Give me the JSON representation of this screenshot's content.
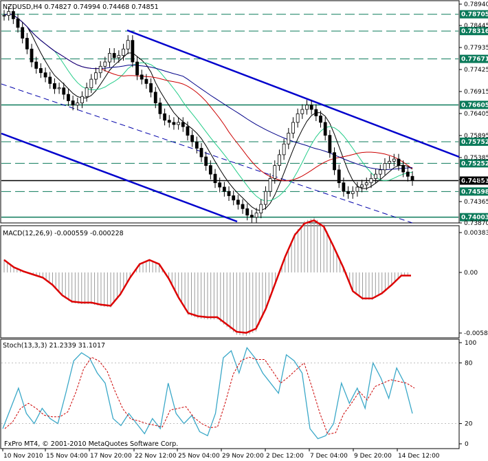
{
  "main_panel": {
    "header": "NZDUSD,H4  0.74827 0.74994 0.74468 0.74851",
    "y_labels": [
      "0.78940",
      "0.78445",
      "0.77935",
      "0.77425",
      "0.76915",
      "0.76405",
      "0.75895",
      "0.75385",
      "0.74875",
      "0.74365",
      "0.73870"
    ],
    "level_tags": [
      {
        "text": "0.78705",
        "value": 0.78705,
        "style": "green",
        "dashed": true
      },
      {
        "text": "0.78316",
        "value": 0.78316,
        "style": "green",
        "dashed": true
      },
      {
        "text": "0.77671",
        "value": 0.77671,
        "style": "green",
        "dashed": true
      },
      {
        "text": "0.76605",
        "value": 0.76605,
        "style": "green",
        "dashed": false
      },
      {
        "text": "0.75752",
        "value": 0.75752,
        "style": "green",
        "dashed": true
      },
      {
        "text": "0.75252",
        "value": 0.75252,
        "style": "green",
        "dashed": true
      },
      {
        "text": "0.74851",
        "value": 0.74851,
        "style": "black",
        "dashed": false
      },
      {
        "text": "0.74598",
        "value": 0.74598,
        "style": "green",
        "dashed": true
      },
      {
        "text": "0.74003",
        "value": 0.74003,
        "style": "green",
        "dashed": false
      }
    ]
  },
  "macd_panel": {
    "header": "MACD(12,26,9) -0.000559 -0.000228",
    "y_labels": [
      "0.00383",
      "0.00",
      "-0.00582"
    ]
  },
  "stoch_panel": {
    "header": "Stoch(13,3,3) 21.2339 31.1017",
    "y_labels": [
      "100",
      "80",
      "20",
      "0"
    ],
    "copyright": "FxPro MT4, © 2001-2010 MetaQuotes Software Corp."
  },
  "x_axis": {
    "labels": [
      "10 Nov 2010",
      "15 Nov 04:00",
      "17 Nov 20:00",
      "22 Nov 12:00",
      "25 Nov 04:00",
      "29 Nov 20:00",
      "2 Dec 12:00",
      "7 Dec 04:00",
      "9 Dec 20:00",
      "14 Dec 12:00"
    ]
  },
  "chart_data": {
    "type": "line",
    "series": [
      {
        "name": "NZDUSD,H4",
        "values": [
          0.7868,
          0.7877,
          0.786,
          0.784,
          0.7815,
          0.779,
          0.776,
          0.7745,
          0.7735,
          0.7725,
          0.771,
          0.7698,
          0.77,
          0.7685,
          0.767,
          0.766,
          0.7665,
          0.768,
          0.77,
          0.772,
          0.7735,
          0.775,
          0.776,
          0.778,
          0.777,
          0.7775,
          0.779,
          0.781,
          0.776,
          0.773,
          0.772,
          0.771,
          0.769,
          0.7665,
          0.764,
          0.7625,
          0.762,
          0.7615,
          0.762,
          0.761,
          0.759,
          0.7575,
          0.756,
          0.754,
          0.752,
          0.75,
          0.748,
          0.747,
          0.746,
          0.745,
          0.744,
          0.743,
          0.742,
          0.7405,
          0.74,
          0.741,
          0.743,
          0.746,
          0.749,
          0.752,
          0.7545,
          0.757,
          0.7595,
          0.762,
          0.764,
          0.765,
          0.766,
          0.765,
          0.7635,
          0.762,
          0.759,
          0.755,
          0.751,
          0.748,
          0.746,
          0.7455,
          0.746,
          0.747,
          0.7475,
          0.748,
          0.749,
          0.75,
          0.751,
          0.7525,
          0.753,
          0.7535,
          0.752,
          0.7505,
          0.7495,
          0.7485
        ]
      },
      {
        "name": "MACD(12,26,9)",
        "values": [
          0.0012,
          0.0005,
          0.0001,
          -0.0002,
          -0.0005,
          -0.0012,
          -0.0022,
          -0.0028,
          -0.0029,
          -0.0029,
          -0.0031,
          -0.0032,
          -0.0021,
          -0.0005,
          0.0008,
          0.0012,
          0.0008,
          -0.0006,
          -0.0024,
          -0.0039,
          -0.0042,
          -0.0043,
          -0.0043,
          -0.005,
          -0.0057,
          -0.0058,
          -0.0054,
          -0.0035,
          -0.001,
          0.0015,
          0.0036,
          0.0047,
          0.005,
          0.0044,
          0.0025,
          0.0005,
          -0.0018,
          -0.0025,
          -0.0025,
          -0.002,
          -0.0012,
          -0.0003,
          -0.0003
        ]
      },
      {
        "name": "Stoch(13,3,3)",
        "values": [
          15,
          35,
          55,
          30,
          20,
          35,
          25,
          20,
          50,
          82,
          90,
          85,
          70,
          60,
          25,
          18,
          30,
          20,
          10,
          25,
          15,
          60,
          30,
          20,
          28,
          12,
          8,
          30,
          85,
          92,
          70,
          95,
          85,
          70,
          60,
          50,
          88,
          82,
          70,
          15,
          5,
          8,
          20,
          60,
          40,
          55,
          35,
          80,
          65,
          45,
          75,
          60,
          30
        ]
      }
    ],
    "ylim": [
      0.7387,
      0.7894
    ]
  }
}
